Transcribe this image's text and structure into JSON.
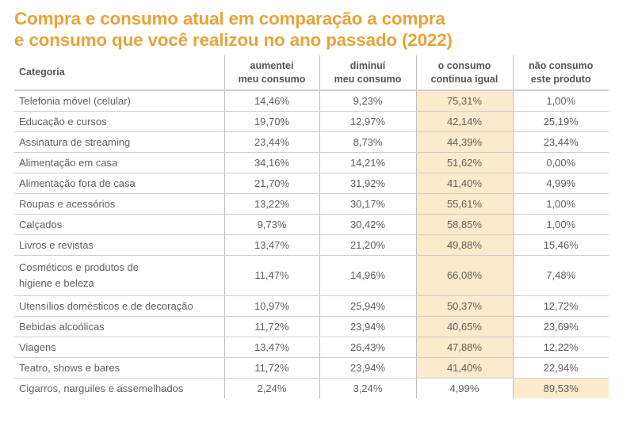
{
  "title_line1": "Compra e consumo atual em comparação a compra",
  "title_line2": "e consumo que você realizou no ano passado (2022)",
  "colors": {
    "title": "#e8a33a",
    "highlight": "#fbeacb"
  },
  "headers": {
    "category": "Categoria",
    "col1_l1": "aumentei",
    "col1_l2": "meu consumo",
    "col2_l1": "diminuí",
    "col2_l2": "meu consumo",
    "col3_l1": "o consumo",
    "col3_l2": "continua igual",
    "col4_l1": "não consumo",
    "col4_l2": "este produto"
  },
  "rows": [
    {
      "category": "Telefonia móvel (celular)",
      "aumentei": "14,46%",
      "diminui": "9,23%",
      "igual": "75,31%",
      "nao_consumo": "1,00%"
    },
    {
      "category": "Educação e cursos",
      "aumentei": "19,70%",
      "diminui": "12,97%",
      "igual": "42,14%",
      "nao_consumo": "25,19%"
    },
    {
      "category": "Assinatura de streaming",
      "aumentei": "23,44%",
      "diminui": "8,73%",
      "igual": "44,39%",
      "nao_consumo": "23,44%"
    },
    {
      "category": "Alimentação em casa",
      "aumentei": "34,16%",
      "diminui": "14,21%",
      "igual": "51,62%",
      "nao_consumo": "0,00%"
    },
    {
      "category": "Alimentação fora de casa",
      "aumentei": "21,70%",
      "diminui": "31,92%",
      "igual": "41,40%",
      "nao_consumo": "4,99%"
    },
    {
      "category": "Roupas e acessórios",
      "aumentei": "13,22%",
      "diminui": "30,17%",
      "igual": "55,61%",
      "nao_consumo": "1,00%"
    },
    {
      "category": "Calçados",
      "aumentei": "9,73%",
      "diminui": "30,42%",
      "igual": "58,85%",
      "nao_consumo": "1,00%"
    },
    {
      "category": "Livros e revistas",
      "aumentei": "13,47%",
      "diminui": "21,20%",
      "igual": "49,88%",
      "nao_consumo": "15,46%"
    },
    {
      "category_l1": "Cosméticos e produtos de",
      "category_l2": "higiene e beleza",
      "aumentei": "11,47%",
      "diminui": "14,96%",
      "igual": "66,08%",
      "nao_consumo": "7,48%"
    },
    {
      "category": "Utensílios domésticos e de decoração",
      "aumentei": "10,97%",
      "diminui": "25,94%",
      "igual": "50,37%",
      "nao_consumo": "12,72%"
    },
    {
      "category": "Bebidas alcoólicas",
      "aumentei": "11,72%",
      "diminui": "23,94%",
      "igual": "40,65%",
      "nao_consumo": "23,69%"
    },
    {
      "category": "Viagens",
      "aumentei": "13,47%",
      "diminui": "26,43%",
      "igual": "47,88%",
      "nao_consumo": "12,22%"
    },
    {
      "category": "Teatro, shows e bares",
      "aumentei": "11,72%",
      "diminui": "23,94%",
      "igual": "41,40%",
      "nao_consumo": "22,94%"
    },
    {
      "category": "Cigarros, narguiles e assemelhados",
      "aumentei": "2,24%",
      "diminui": "3,24%",
      "igual": "4,99%",
      "nao_consumo": "89,53%"
    }
  ]
}
